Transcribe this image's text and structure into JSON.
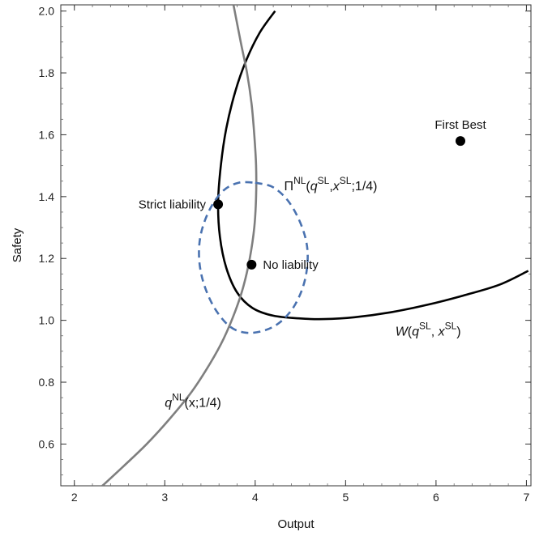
{
  "chart_data": {
    "type": "line",
    "xlabel": "Output",
    "ylabel": "Safety",
    "xlim": [
      1.85,
      7.05
    ],
    "ylim": [
      0.465,
      2.02
    ],
    "xticks": [
      {
        "value": 2,
        "label": "2"
      },
      {
        "value": 3,
        "label": "3"
      },
      {
        "value": 4,
        "label": "4"
      },
      {
        "value": 5,
        "label": "5"
      },
      {
        "value": 6,
        "label": "6"
      },
      {
        "value": 7,
        "label": "7"
      }
    ],
    "yticks": [
      {
        "value": 0.6,
        "label": "0.6"
      },
      {
        "value": 0.8,
        "label": "0.8"
      },
      {
        "value": 1.0,
        "label": "1.0"
      },
      {
        "value": 1.2,
        "label": "1.2"
      },
      {
        "value": 1.4,
        "label": "1.4"
      },
      {
        "value": 1.6,
        "label": "1.6"
      },
      {
        "value": 1.8,
        "label": "1.8"
      },
      {
        "value": 2.0,
        "label": "2.0"
      }
    ],
    "grid": false,
    "series": [
      {
        "name": "W(q^SL, x^SL)",
        "color": "#000000",
        "style": "solid",
        "points": [
          [
            4.22,
            2.0
          ],
          [
            4.05,
            1.93
          ],
          [
            3.9,
            1.84
          ],
          [
            3.78,
            1.74
          ],
          [
            3.68,
            1.62
          ],
          [
            3.62,
            1.5
          ],
          [
            3.59,
            1.38
          ],
          [
            3.61,
            1.27
          ],
          [
            3.68,
            1.17
          ],
          [
            3.8,
            1.09
          ],
          [
            3.97,
            1.04
          ],
          [
            4.2,
            1.015
          ],
          [
            4.5,
            1.006
          ],
          [
            4.76,
            1.004
          ],
          [
            5.1,
            1.01
          ],
          [
            5.5,
            1.026
          ],
          [
            5.9,
            1.05
          ],
          [
            6.3,
            1.08
          ],
          [
            6.7,
            1.115
          ],
          [
            7.02,
            1.16
          ]
        ]
      },
      {
        "name": "q^NL(x;1/4)",
        "color": "#7f7f7f",
        "style": "solid",
        "points": [
          [
            2.31,
            0.465
          ],
          [
            2.55,
            0.53
          ],
          [
            2.8,
            0.6
          ],
          [
            3.05,
            0.68
          ],
          [
            3.3,
            0.77
          ],
          [
            3.5,
            0.86
          ],
          [
            3.65,
            0.94
          ],
          [
            3.78,
            1.03
          ],
          [
            3.87,
            1.11
          ],
          [
            3.94,
            1.2
          ],
          [
            3.99,
            1.3
          ],
          [
            4.01,
            1.4
          ],
          [
            4.01,
            1.5
          ],
          [
            3.99,
            1.6
          ],
          [
            3.96,
            1.7
          ],
          [
            3.91,
            1.8
          ],
          [
            3.84,
            1.9
          ],
          [
            3.76,
            2.02
          ]
        ]
      },
      {
        "name": "Π^NL(q^SL, x^SL; 1/4)",
        "color": "#4a72b0",
        "style": "dashed",
        "points": [
          [
            4.0,
            1.445
          ],
          [
            4.2,
            1.43
          ],
          [
            4.38,
            1.38
          ],
          [
            4.52,
            1.3
          ],
          [
            4.58,
            1.22
          ],
          [
            4.55,
            1.13
          ],
          [
            4.44,
            1.05
          ],
          [
            4.28,
            0.995
          ],
          [
            4.1,
            0.967
          ],
          [
            3.9,
            0.96
          ],
          [
            3.72,
            0.98
          ],
          [
            3.55,
            1.04
          ],
          [
            3.43,
            1.12
          ],
          [
            3.38,
            1.2
          ],
          [
            3.4,
            1.28
          ],
          [
            3.5,
            1.36
          ],
          [
            3.65,
            1.42
          ],
          [
            3.82,
            1.445
          ],
          [
            4.0,
            1.445
          ]
        ]
      }
    ],
    "points": [
      {
        "label": "First Best",
        "x": 6.27,
        "y": 1.58
      },
      {
        "label": "Strict liability",
        "x": 3.59,
        "y": 1.375
      },
      {
        "label": "No liability",
        "x": 3.96,
        "y": 1.18
      }
    ],
    "annotations": [
      {
        "id": "pi",
        "text": "Π^NL(q^SL, x^SL; 1/4)",
        "x": 4.32,
        "y": 1.42
      },
      {
        "id": "w",
        "text": "W(q^SL, x^SL)",
        "x": 5.55,
        "y": 0.95
      },
      {
        "id": "q",
        "text": "q^NL(x;1/4)",
        "x": 3.0,
        "y": 0.72
      }
    ]
  },
  "labels": {
    "pi_main": "Π",
    "pi_sup_nl": "NL",
    "pi_q": "q",
    "pi_sup_sl1": "SL",
    "pi_comma": ",",
    "pi_x": "x",
    "pi_sup_sl2": "SL",
    "pi_tail": ";1/4)",
    "pi_open": "(",
    "w_main": "W",
    "w_open": "(",
    "w_q": "q",
    "w_sup_sl1": "SL",
    "w_comma": ", ",
    "w_x": "x",
    "w_sup_sl2": "SL",
    "w_close": ")",
    "q_main": "q",
    "q_sup_nl": "NL",
    "q_tail": "(x;1/4)"
  }
}
